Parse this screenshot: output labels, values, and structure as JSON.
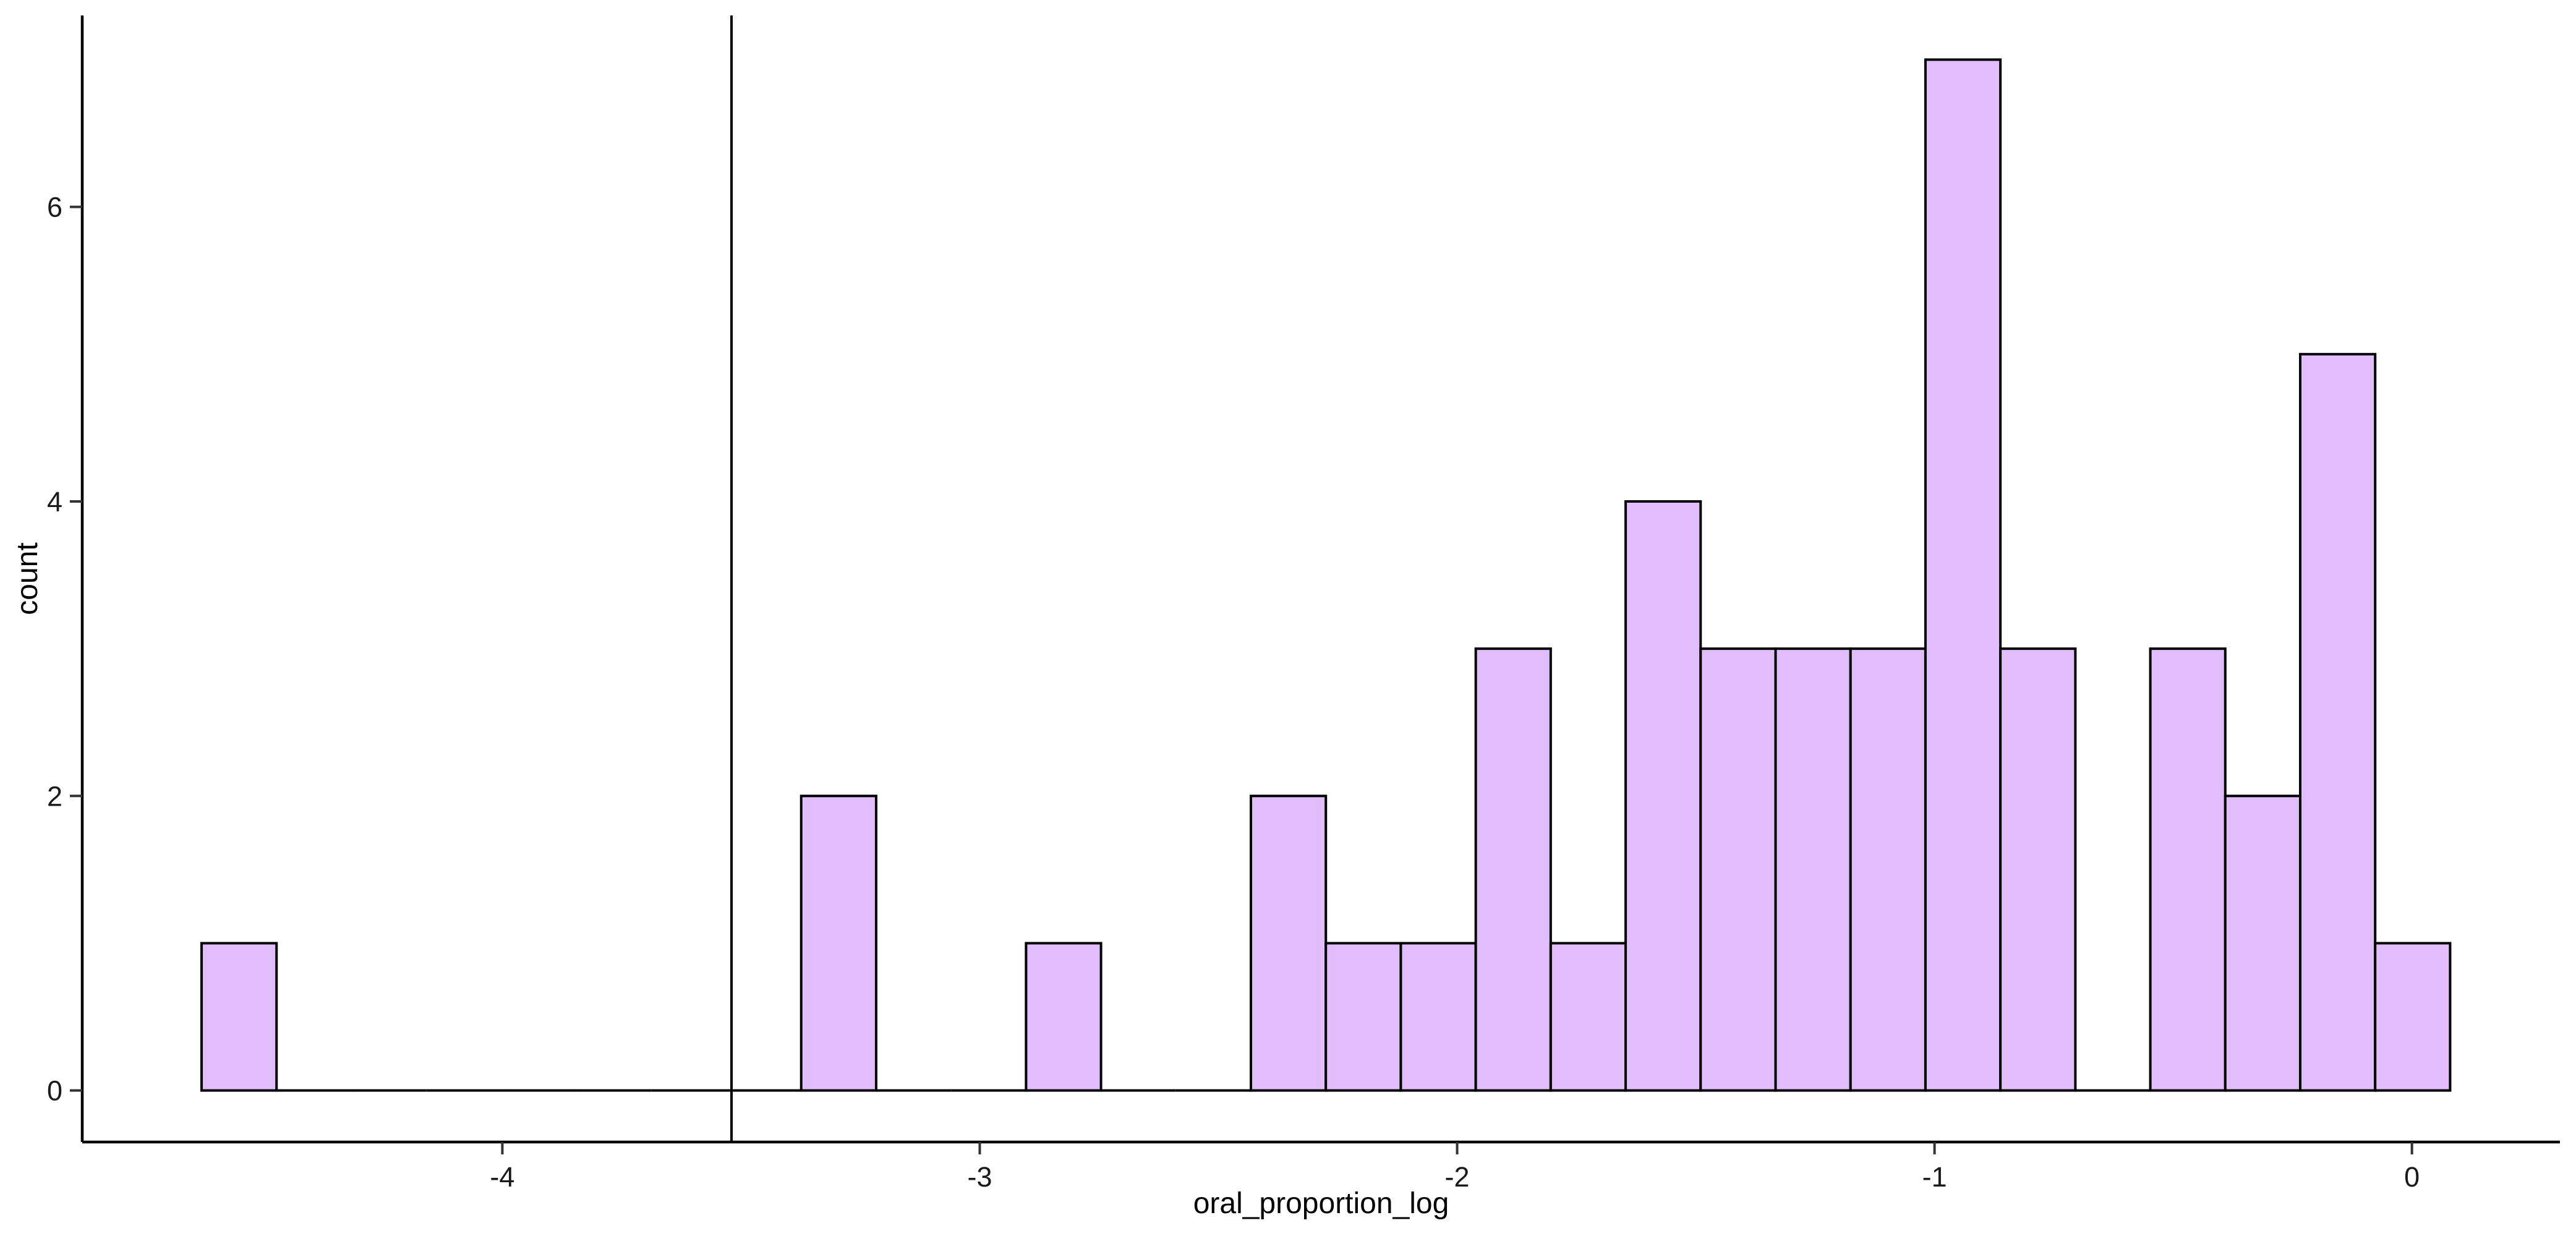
{
  "chart_data": {
    "type": "histogram",
    "xlabel": "oral_proportion_log",
    "ylabel": "count",
    "xlim": [
      -4.88,
      0.31
    ],
    "ylim": [
      -0.35,
      7.3
    ],
    "x_ticks": [
      -4,
      -3,
      -2,
      -1,
      0
    ],
    "y_ticks": [
      0,
      2,
      4,
      6
    ],
    "bin_width": 0.157,
    "bins": [
      {
        "x0": -4.63,
        "x1": -4.473,
        "count": 1
      },
      {
        "x0": -4.473,
        "x1": -4.316,
        "count": 0
      },
      {
        "x0": -4.316,
        "x1": -4.159,
        "count": 0
      },
      {
        "x0": -4.159,
        "x1": -4.002,
        "count": 0
      },
      {
        "x0": -4.002,
        "x1": -3.845,
        "count": 0
      },
      {
        "x0": -3.845,
        "x1": -3.688,
        "count": 0
      },
      {
        "x0": -3.688,
        "x1": -3.531,
        "count": 0
      },
      {
        "x0": -3.531,
        "x1": -3.374,
        "count": 0
      },
      {
        "x0": -3.374,
        "x1": -3.217,
        "count": 2
      },
      {
        "x0": -3.217,
        "x1": -3.06,
        "count": 0
      },
      {
        "x0": -3.06,
        "x1": -2.903,
        "count": 0
      },
      {
        "x0": -2.903,
        "x1": -2.746,
        "count": 1
      },
      {
        "x0": -2.746,
        "x1": -2.589,
        "count": 0
      },
      {
        "x0": -2.589,
        "x1": -2.432,
        "count": 0
      },
      {
        "x0": -2.432,
        "x1": -2.275,
        "count": 2
      },
      {
        "x0": -2.275,
        "x1": -2.118,
        "count": 1
      },
      {
        "x0": -2.118,
        "x1": -1.961,
        "count": 1
      },
      {
        "x0": -1.961,
        "x1": -1.804,
        "count": 3
      },
      {
        "x0": -1.804,
        "x1": -1.647,
        "count": 1
      },
      {
        "x0": -1.647,
        "x1": -1.49,
        "count": 4
      },
      {
        "x0": -1.49,
        "x1": -1.333,
        "count": 3
      },
      {
        "x0": -1.333,
        "x1": -1.176,
        "count": 3
      },
      {
        "x0": -1.176,
        "x1": -1.019,
        "count": 3
      },
      {
        "x0": -1.019,
        "x1": -0.862,
        "count": 7
      },
      {
        "x0": -0.862,
        "x1": -0.705,
        "count": 3
      },
      {
        "x0": -0.705,
        "x1": -0.548,
        "count": 0
      },
      {
        "x0": -0.548,
        "x1": -0.391,
        "count": 3
      },
      {
        "x0": -0.391,
        "x1": -0.234,
        "count": 2
      },
      {
        "x0": -0.234,
        "x1": -0.077,
        "count": 5
      },
      {
        "x0": -0.077,
        "x1": 0.08,
        "count": 1
      }
    ],
    "vline_x": -3.52,
    "fill_color": "#e2bdfc",
    "stroke_color": "#000000",
    "grid": false,
    "legend": "none"
  }
}
